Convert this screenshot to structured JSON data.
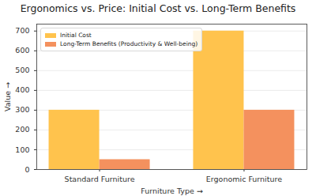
{
  "chart_data": {
    "type": "bar",
    "title": "Ergonomics vs. Price: Initial Cost vs. Long-Term Benefits",
    "x_label": "Furniture Type",
    "y_label": "Value",
    "categories": [
      "Standard Furniture",
      "Ergonomic Furniture"
    ],
    "series": [
      {
        "name": "Initial Cost",
        "color": "#ffc34d",
        "values": [
          300,
          700
        ]
      },
      {
        "name": "Long-Term Benefits (Productivity & Well-being)",
        "color": "#f4915e",
        "values": [
          50,
          300
        ]
      }
    ],
    "ylim": [
      0,
      735
    ],
    "yticks": [
      0,
      100,
      200,
      300,
      400,
      500,
      600,
      700
    ],
    "grid": true,
    "legend": "upper left"
  }
}
